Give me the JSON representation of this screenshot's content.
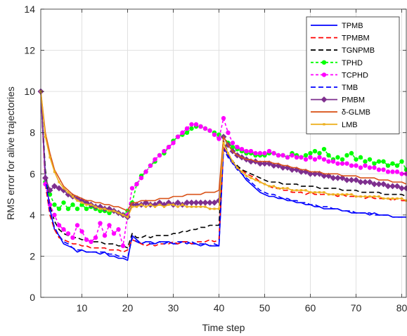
{
  "chart_data": {
    "type": "line",
    "xlabel": "Time step",
    "ylabel": "RMS error for alive trajectories",
    "xlim": [
      1,
      81
    ],
    "ylim": [
      0,
      14
    ],
    "xticks": [
      10,
      20,
      30,
      40,
      50,
      60,
      70,
      80
    ],
    "yticks": [
      0,
      2,
      4,
      6,
      8,
      10,
      12,
      14
    ],
    "grid": true,
    "legend_position": "top-right",
    "x": [
      1,
      2,
      3,
      4,
      5,
      6,
      7,
      8,
      9,
      10,
      11,
      12,
      13,
      14,
      15,
      16,
      17,
      18,
      19,
      20,
      21,
      22,
      23,
      24,
      25,
      26,
      27,
      28,
      29,
      30,
      31,
      32,
      33,
      34,
      35,
      36,
      37,
      38,
      39,
      40,
      41,
      42,
      43,
      44,
      45,
      46,
      47,
      48,
      49,
      50,
      51,
      52,
      53,
      54,
      55,
      56,
      57,
      58,
      59,
      60,
      61,
      62,
      63,
      64,
      65,
      66,
      67,
      68,
      69,
      70,
      71,
      72,
      73,
      74,
      75,
      76,
      77,
      78,
      79,
      80,
      81
    ],
    "series": [
      {
        "name": "TPMB",
        "color": "#0000ff",
        "dash": "solid",
        "marker": "none",
        "values": [
          10,
          6.0,
          4.3,
          3.3,
          3.0,
          2.6,
          2.5,
          2.4,
          2.2,
          2.3,
          2.2,
          2.2,
          2.2,
          2.1,
          2.2,
          2.0,
          2.0,
          1.9,
          1.9,
          1.8,
          3.0,
          2.8,
          2.6,
          2.7,
          2.7,
          2.6,
          2.7,
          2.7,
          2.7,
          2.6,
          2.6,
          2.7,
          2.7,
          2.6,
          2.6,
          2.5,
          2.6,
          2.5,
          2.5,
          2.5,
          7.3,
          6.9,
          6.5,
          6.3,
          6.0,
          5.7,
          5.5,
          5.3,
          5.1,
          5.0,
          4.9,
          4.9,
          4.8,
          4.8,
          4.7,
          4.7,
          4.6,
          4.6,
          4.5,
          4.5,
          4.4,
          4.4,
          4.3,
          4.3,
          4.3,
          4.3,
          4.2,
          4.2,
          4.1,
          4.1,
          4.1,
          4.1,
          4.0,
          4.1,
          4.0,
          4.0,
          4.0,
          3.9,
          3.9,
          3.9,
          3.9
        ]
      },
      {
        "name": "TPMBM",
        "color": "#ff0000",
        "dash": "long",
        "marker": "none",
        "values": [
          10,
          5.5,
          4.0,
          3.3,
          2.9,
          2.8,
          2.7,
          2.6,
          2.6,
          2.5,
          2.5,
          2.4,
          2.4,
          2.4,
          2.4,
          2.3,
          2.3,
          2.3,
          2.2,
          2.3,
          2.8,
          2.7,
          2.6,
          2.5,
          2.6,
          2.5,
          2.6,
          2.6,
          2.6,
          2.7,
          2.6,
          2.7,
          2.7,
          2.6,
          2.7,
          2.7,
          2.7,
          2.8,
          2.7,
          2.8,
          7.3,
          6.8,
          6.5,
          6.3,
          6.2,
          6.0,
          5.9,
          5.8,
          5.6,
          5.5,
          5.4,
          5.3,
          5.3,
          5.2,
          5.2,
          5.1,
          5.1,
          5.1,
          5.0,
          5.1,
          5.0,
          5.0,
          5.0,
          5.0,
          5.0,
          4.9,
          5.0,
          4.9,
          4.9,
          4.9,
          4.9,
          4.8,
          4.9,
          4.8,
          4.8,
          4.8,
          4.8,
          4.7,
          4.8,
          4.7,
          4.7
        ]
      },
      {
        "name": "TGNPMB",
        "color": "#000000",
        "dash": "long",
        "marker": "none",
        "values": [
          10,
          6.2,
          4.5,
          3.7,
          3.3,
          3.1,
          3.0,
          2.9,
          2.9,
          2.8,
          2.8,
          2.7,
          2.7,
          2.7,
          2.6,
          2.6,
          2.6,
          2.5,
          2.5,
          2.4,
          3.1,
          2.9,
          2.9,
          3.0,
          2.9,
          3.0,
          3.0,
          3.0,
          3.0,
          3.1,
          3.1,
          3.2,
          3.2,
          3.3,
          3.3,
          3.4,
          3.4,
          3.5,
          3.5,
          3.5,
          7.6,
          7.0,
          6.6,
          6.4,
          6.2,
          6.1,
          6.0,
          5.9,
          5.8,
          5.7,
          5.6,
          5.6,
          5.6,
          5.5,
          5.5,
          5.5,
          5.5,
          5.4,
          5.4,
          5.4,
          5.4,
          5.3,
          5.3,
          5.3,
          5.3,
          5.3,
          5.2,
          5.2,
          5.2,
          5.2,
          5.1,
          5.1,
          5.1,
          5.1,
          5.1,
          5.0,
          5.0,
          5.0,
          5.0,
          5.0,
          4.9
        ]
      },
      {
        "name": "TPHD",
        "color": "#00ff00",
        "dash": "medium",
        "marker": "circle",
        "values": [
          10,
          5.6,
          5.0,
          4.5,
          4.3,
          4.6,
          4.3,
          4.5,
          4.3,
          4.5,
          4.3,
          4.4,
          4.3,
          4.2,
          4.2,
          4.1,
          4.2,
          4.1,
          4.0,
          4.2,
          4.6,
          5.5,
          5.9,
          6.1,
          6.4,
          6.6,
          6.9,
          7.0,
          7.3,
          7.6,
          7.8,
          7.9,
          8.0,
          8.2,
          8.3,
          8.3,
          8.2,
          8.1,
          8.0,
          7.9,
          7.8,
          7.5,
          7.3,
          7.2,
          7.1,
          7.0,
          7.0,
          6.9,
          6.9,
          6.9,
          7.0,
          7.0,
          6.9,
          6.9,
          6.8,
          7.0,
          6.9,
          6.8,
          6.9,
          7.0,
          7.1,
          7.0,
          7.2,
          6.9,
          6.7,
          6.8,
          6.7,
          6.9,
          7.0,
          6.7,
          6.8,
          6.6,
          6.7,
          6.5,
          6.6,
          6.6,
          6.4,
          6.5,
          6.4,
          6.6,
          6.2
        ]
      },
      {
        "name": "TCPHD",
        "color": "#ff00ff",
        "dash": "medium",
        "marker": "circle",
        "values": [
          10,
          5.5,
          4.5,
          4.0,
          3.5,
          3.3,
          3.1,
          2.9,
          3.5,
          3.2,
          2.8,
          2.7,
          2.9,
          3.6,
          3.0,
          3.5,
          3.1,
          3.3,
          2.5,
          4.0,
          5.3,
          5.5,
          5.8,
          6.1,
          6.4,
          6.7,
          6.9,
          7.1,
          7.3,
          7.5,
          7.8,
          8.0,
          8.2,
          8.4,
          8.4,
          8.3,
          8.2,
          8.1,
          7.9,
          7.7,
          8.7,
          8.0,
          7.5,
          7.3,
          7.2,
          7.1,
          7.1,
          7.0,
          7.0,
          7.0,
          7.1,
          7.0,
          6.9,
          6.9,
          6.8,
          6.9,
          6.8,
          6.8,
          6.7,
          6.8,
          6.7,
          6.8,
          6.7,
          6.6,
          6.6,
          6.5,
          6.5,
          6.5,
          6.4,
          6.4,
          6.3,
          6.4,
          6.3,
          6.3,
          6.2,
          6.2,
          6.1,
          6.1,
          6.1,
          6.0,
          6.0
        ]
      },
      {
        "name": "TMB",
        "color": "#0000ff",
        "dash": "long",
        "marker": "none",
        "values": [
          10,
          5.8,
          4.2,
          3.4,
          3.0,
          2.7,
          2.6,
          2.4,
          2.3,
          2.3,
          2.2,
          2.2,
          2.2,
          2.2,
          2.2,
          2.1,
          2.1,
          2.0,
          2.0,
          1.9,
          2.9,
          2.7,
          2.6,
          2.7,
          2.6,
          2.6,
          2.7,
          2.6,
          2.7,
          2.6,
          2.7,
          2.7,
          2.6,
          2.7,
          2.6,
          2.6,
          2.6,
          2.5,
          2.6,
          2.5,
          7.2,
          6.8,
          6.5,
          6.2,
          6.0,
          5.8,
          5.6,
          5.4,
          5.2,
          5.1,
          5.0,
          5.0,
          4.9,
          4.8,
          4.8,
          4.7,
          4.7,
          4.6,
          4.6,
          4.5,
          4.5,
          4.4,
          4.4,
          4.4,
          4.3,
          4.3,
          4.2,
          4.2,
          4.2,
          4.1,
          4.1,
          4.1,
          4.1,
          4.0,
          4.0,
          4.0,
          4.0,
          3.9,
          3.9,
          3.9,
          3.9
        ]
      },
      {
        "name": "PMBM",
        "color": "#7e2f8e",
        "dash": "solid",
        "marker": "diamond",
        "values": [
          10,
          5.8,
          5.2,
          5.4,
          5.3,
          5.2,
          5.0,
          4.9,
          4.8,
          4.7,
          4.6,
          4.5,
          4.4,
          4.4,
          4.3,
          4.3,
          4.2,
          4.1,
          4.0,
          3.9,
          4.5,
          4.5,
          4.5,
          4.6,
          4.5,
          4.5,
          4.6,
          4.5,
          4.6,
          4.5,
          4.6,
          4.5,
          4.6,
          4.6,
          4.6,
          4.6,
          4.6,
          4.6,
          4.6,
          4.7,
          7.8,
          7.4,
          7.1,
          6.9,
          6.8,
          6.7,
          6.6,
          6.6,
          6.5,
          6.5,
          6.5,
          6.4,
          6.4,
          6.3,
          6.3,
          6.2,
          6.2,
          6.1,
          6.1,
          6.0,
          6.0,
          6.0,
          5.9,
          5.9,
          5.8,
          5.8,
          5.8,
          5.7,
          5.7,
          5.7,
          5.6,
          5.6,
          5.6,
          5.5,
          5.5,
          5.5,
          5.4,
          5.4,
          5.4,
          5.3,
          5.3
        ]
      },
      {
        "name": "δ-GLMB",
        "color": "#d95319",
        "dash": "solid",
        "marker": "none",
        "values": [
          10,
          8.0,
          7.0,
          6.2,
          5.8,
          5.4,
          5.2,
          5.0,
          4.9,
          4.8,
          4.7,
          4.7,
          4.6,
          4.6,
          4.5,
          4.5,
          4.4,
          4.4,
          4.3,
          4.2,
          4.6,
          4.6,
          4.7,
          4.7,
          4.7,
          4.7,
          4.8,
          4.8,
          4.8,
          4.9,
          4.9,
          4.9,
          5.0,
          5.0,
          5.0,
          5.0,
          5.1,
          5.1,
          5.1,
          5.2,
          7.8,
          7.4,
          7.1,
          6.9,
          6.8,
          6.7,
          6.7,
          6.6,
          6.6,
          6.6,
          6.6,
          6.5,
          6.5,
          6.4,
          6.4,
          6.3,
          6.3,
          6.2,
          6.2,
          6.1,
          6.1,
          6.1,
          6.0,
          6.0,
          6.0,
          6.0,
          5.9,
          5.9,
          5.9,
          5.9,
          5.8,
          5.8,
          5.8,
          5.8,
          5.7,
          5.7,
          5.7,
          5.6,
          5.6,
          5.6,
          5.5
        ]
      },
      {
        "name": "LMB",
        "color": "#edb120",
        "dash": "solid",
        "marker": "square",
        "values": [
          10,
          7.8,
          6.8,
          6.1,
          5.6,
          5.3,
          5.1,
          4.9,
          4.7,
          4.6,
          4.5,
          4.5,
          4.4,
          4.3,
          4.3,
          4.2,
          4.2,
          4.1,
          4.0,
          3.9,
          4.4,
          4.4,
          4.5,
          4.4,
          4.5,
          4.4,
          4.5,
          4.4,
          4.5,
          4.5,
          4.4,
          4.5,
          4.4,
          4.4,
          4.4,
          4.4,
          4.4,
          4.3,
          4.3,
          4.3,
          7.5,
          7.0,
          6.6,
          6.3,
          6.1,
          5.9,
          5.8,
          5.7,
          5.6,
          5.5,
          5.4,
          5.4,
          5.3,
          5.3,
          5.3,
          5.2,
          5.2,
          5.2,
          5.2,
          5.1,
          5.1,
          5.1,
          5.1,
          5.0,
          5.0,
          5.0,
          5.0,
          5.0,
          5.0,
          4.9,
          4.9,
          4.9,
          4.9,
          4.9,
          4.9,
          4.8,
          4.8,
          4.8,
          4.8,
          4.8,
          4.7
        ]
      }
    ]
  }
}
